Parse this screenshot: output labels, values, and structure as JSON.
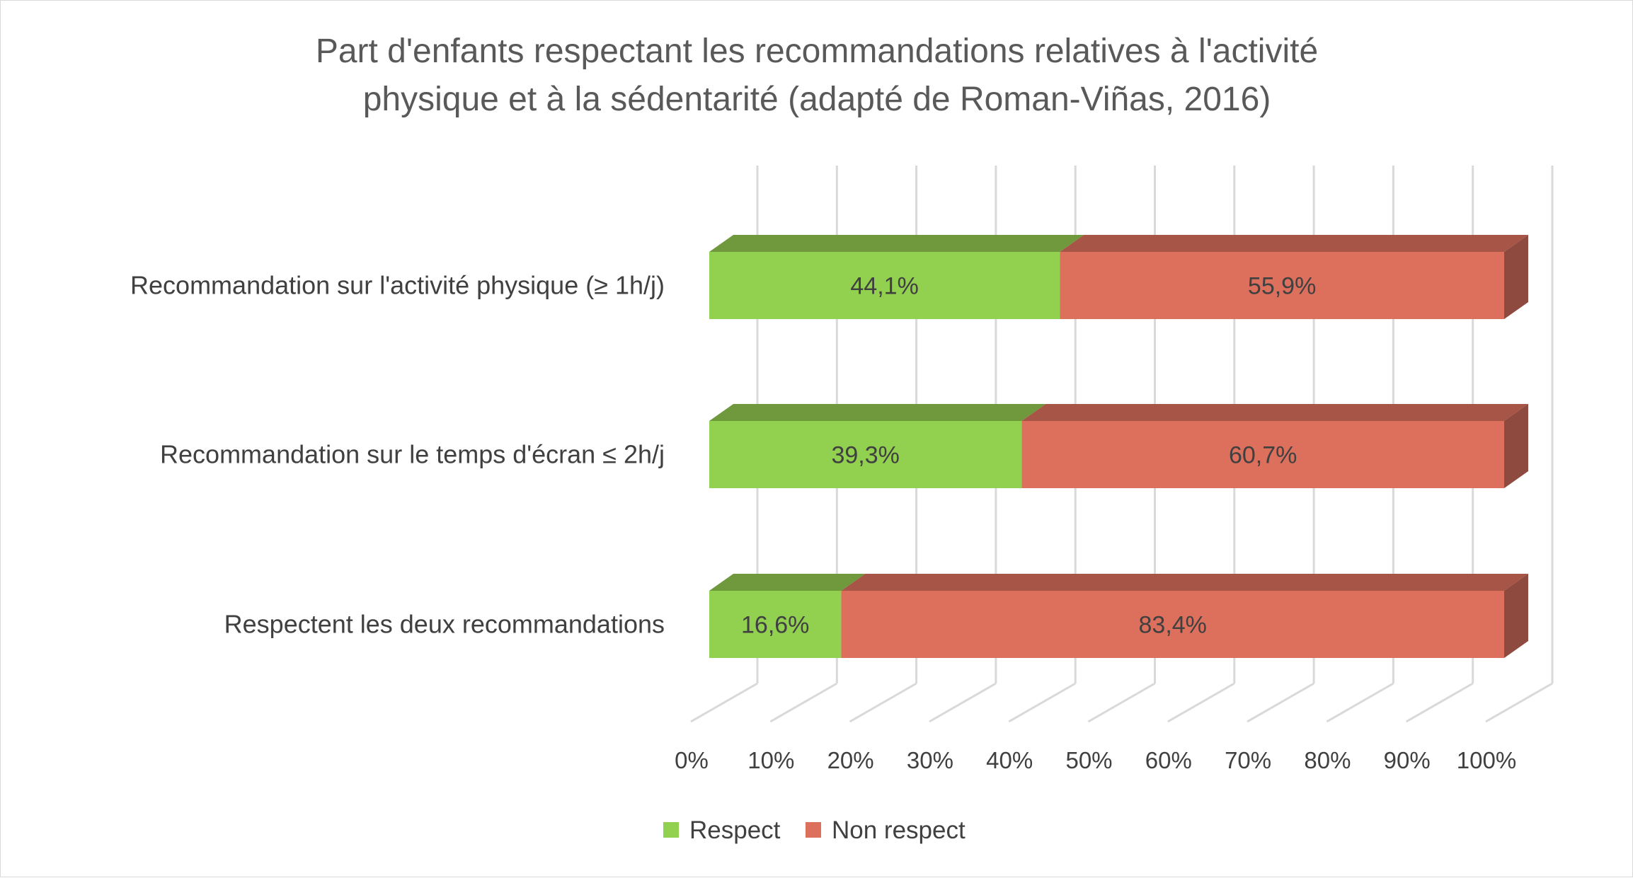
{
  "chart_data": {
    "type": "bar",
    "orientation": "horizontal",
    "stacked": "100%",
    "style": "3d",
    "title": "Part d'enfants respectant les recommandations relatives à l'activité physique et à la sédentarité (adapté de Roman-Viñas, 2016)",
    "title_lines": [
      "Part d'enfants respectant les recommandations relatives à l'activité",
      "physique et à la sédentarité (adapté de Roman-Viñas, 2016)"
    ],
    "categories": [
      "Recommandation sur l'activité physique (≥ 1h/j)",
      "Recommandation sur le temps d'écran ≤ 2h/j",
      "Respectent les deux recommandations"
    ],
    "series": [
      {
        "name": "Respect",
        "values": [
          44.1,
          39.3,
          16.6
        ],
        "labels": [
          "44,1%",
          "39,3%",
          "16,6%"
        ],
        "color": "#92d050",
        "top_color": "#70983c"
      },
      {
        "name": "Non respect",
        "values": [
          55.9,
          60.7,
          83.4
        ],
        "labels": [
          "55,9%",
          "60,7%",
          "83,4%"
        ],
        "color": "#dd705d",
        "top_color": "#a65547"
      }
    ],
    "x_ticks": [
      "0%",
      "10%",
      "20%",
      "30%",
      "40%",
      "50%",
      "60%",
      "70%",
      "80%",
      "90%",
      "100%"
    ],
    "xlim": [
      0,
      100
    ],
    "xlabel": "",
    "ylabel": "",
    "grid": true,
    "legend_position": "bottom"
  }
}
